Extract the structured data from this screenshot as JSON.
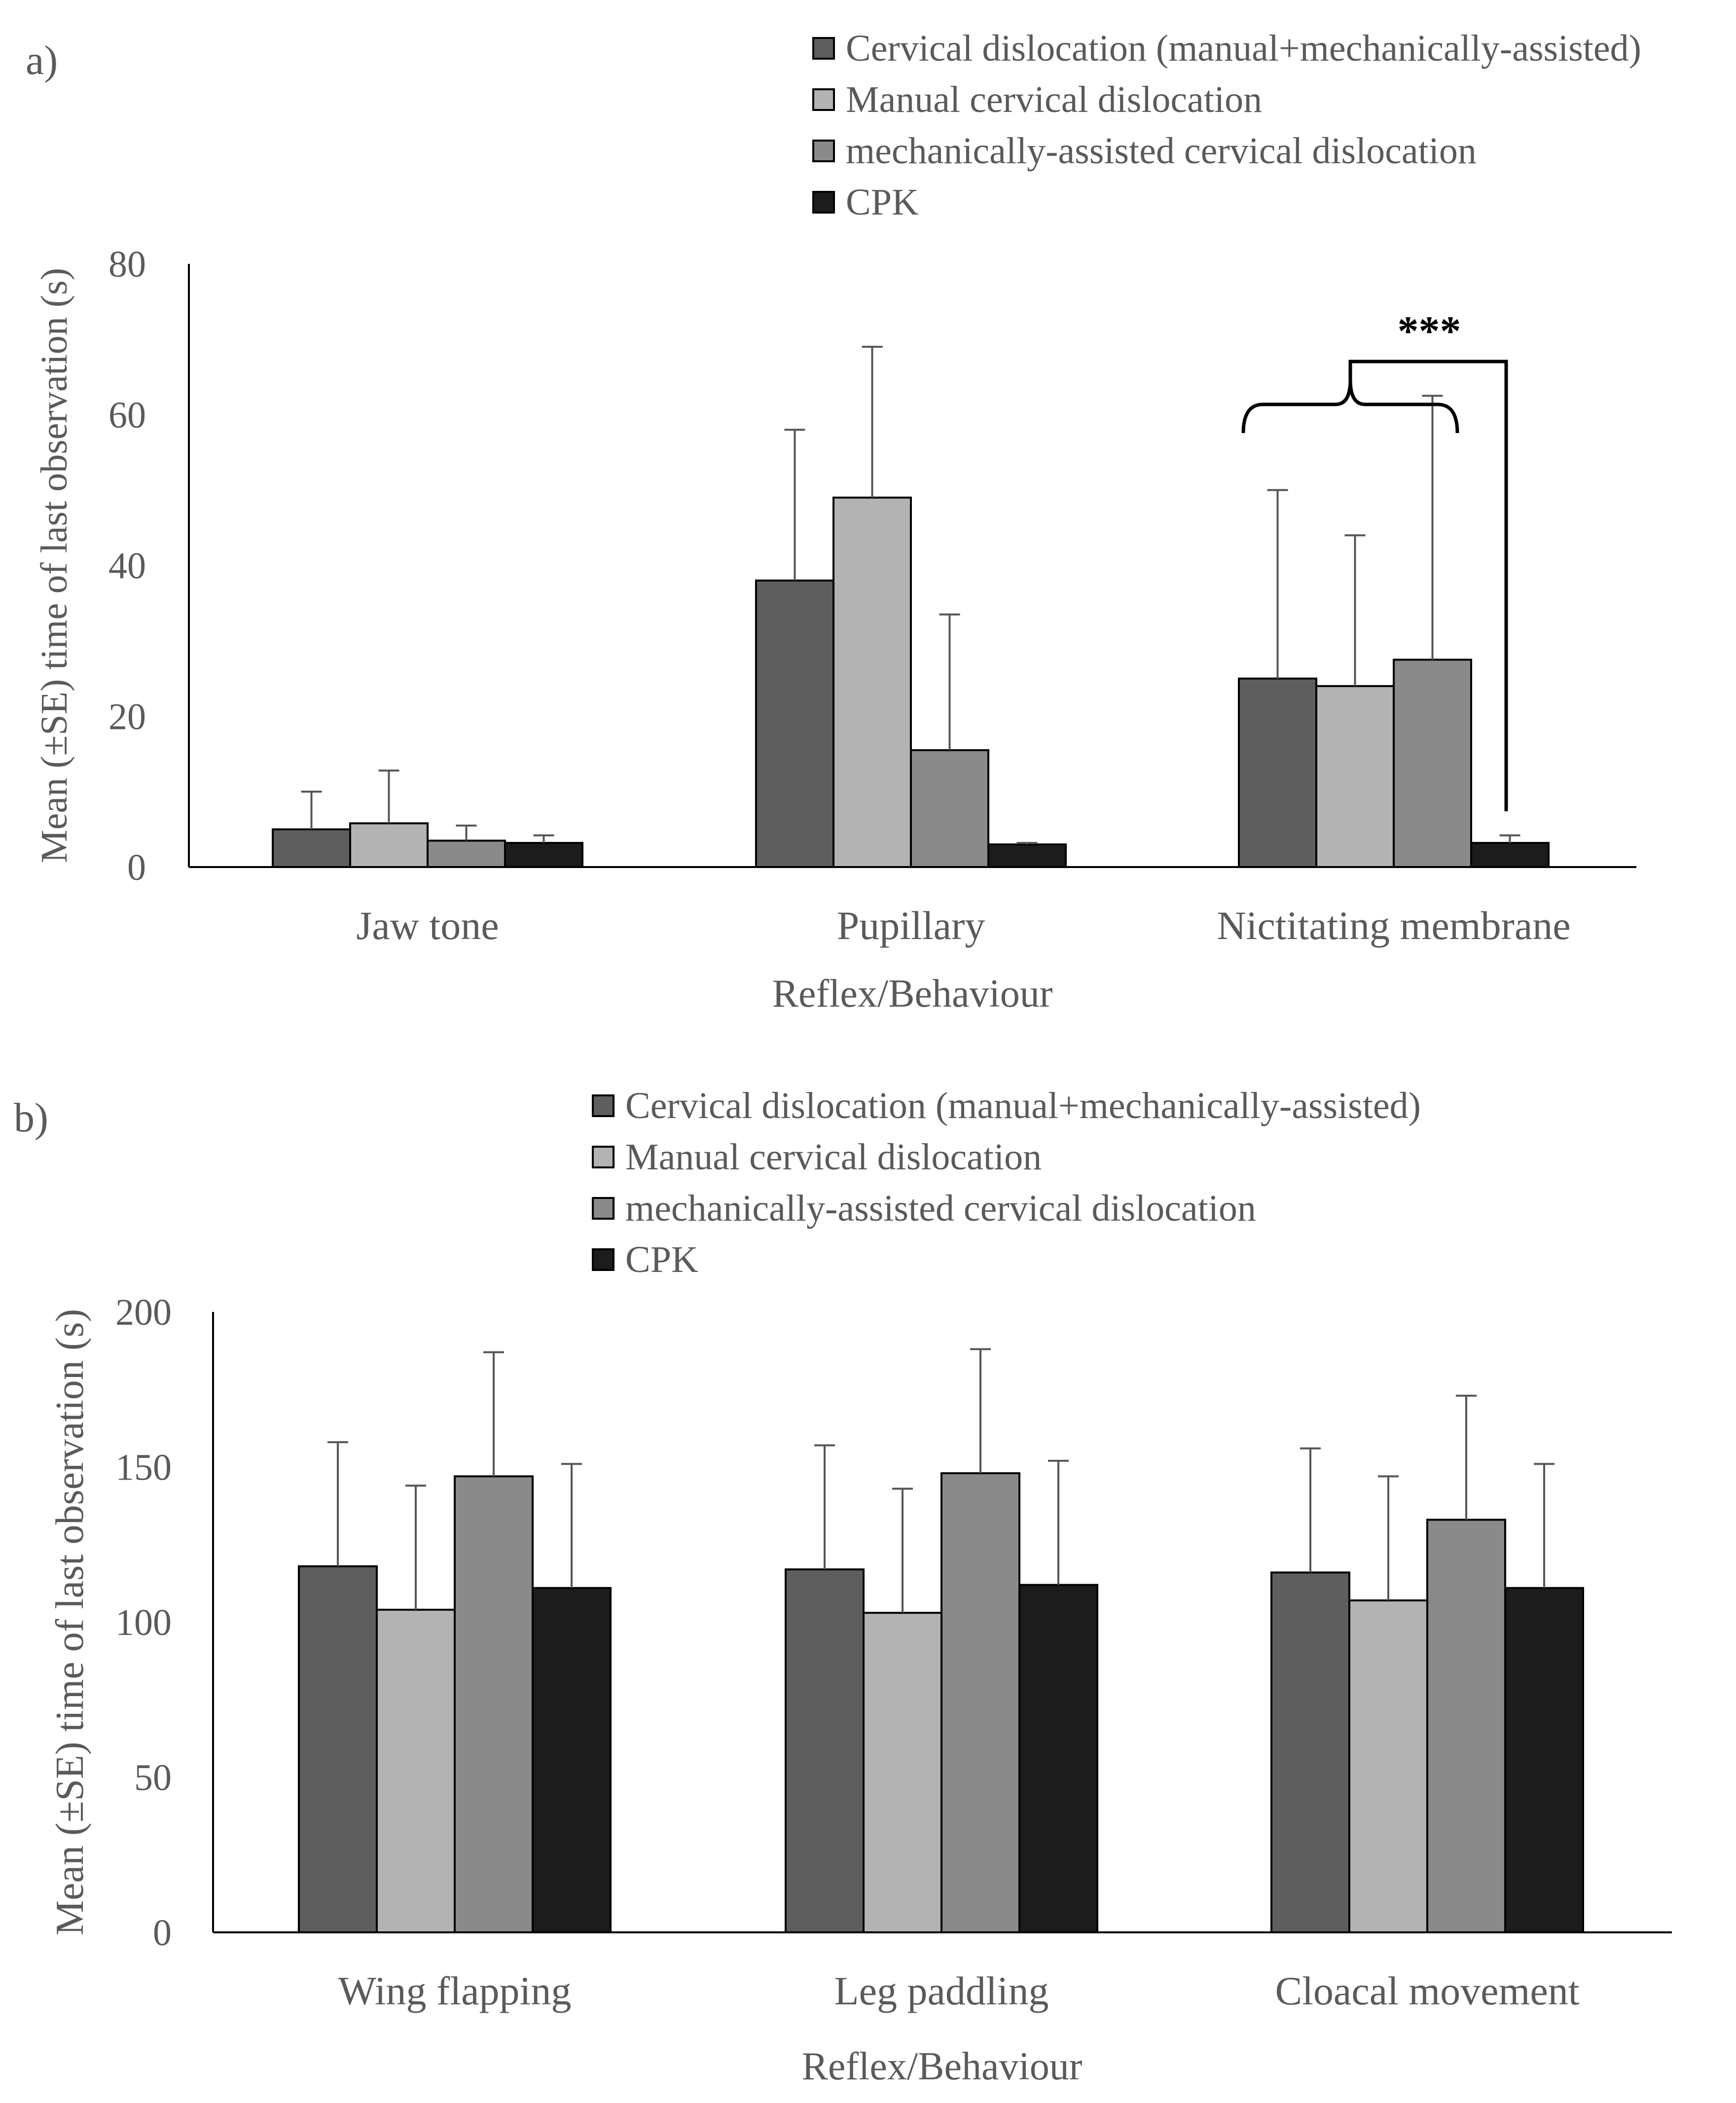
{
  "chart_data": [
    {
      "panel": "a)",
      "type": "bar",
      "title": "",
      "xlabel": "Reflex/Behaviour",
      "ylabel": "Mean (±SE) time of last observation (s)",
      "ylim": [
        0,
        80
      ],
      "yticks": [
        0,
        20,
        40,
        60,
        80
      ],
      "grid": false,
      "legend_position": "top-right",
      "categories": [
        "Jaw tone",
        "Pupillary",
        "Nictitating membrane"
      ],
      "series": [
        {
          "name": "Cervical dislocation (manual+mechanically-assisted)",
          "color": "#5e5e5e",
          "values": [
            5.0,
            38.0,
            25.0
          ],
          "errors": [
            5.0,
            20.0,
            25.0
          ]
        },
        {
          "name": "Manual cervical dislocation",
          "color": "#b3b3b3",
          "values": [
            5.8,
            49.0,
            24.0
          ],
          "errors": [
            7.0,
            20.0,
            20.0
          ]
        },
        {
          "name": "mechanically-assisted cervical dislocation",
          "color": "#8a8a8a",
          "values": [
            3.5,
            15.5,
            27.5
          ],
          "errors": [
            2.0,
            18.0,
            35.0
          ]
        },
        {
          "name": "CPK",
          "color": "#1c1c1c",
          "values": [
            3.2,
            3.0,
            3.2
          ],
          "errors": [
            1.0,
            0.2,
            1.0
          ]
        }
      ],
      "annotations": [
        {
          "text": "***",
          "comparison": "Nictitating membrane: cervical dislocation groups vs CPK"
        }
      ]
    },
    {
      "panel": "b)",
      "type": "bar",
      "title": "",
      "xlabel": "Reflex/Behaviour",
      "ylabel": "Mean (±SE) time of last observation (s)",
      "ylim": [
        0,
        200
      ],
      "yticks": [
        0,
        50,
        100,
        150,
        200
      ],
      "grid": false,
      "legend_position": "top-center",
      "categories": [
        "Wing flapping",
        "Leg paddling",
        "Cloacal movement"
      ],
      "series": [
        {
          "name": "Cervical dislocation (manual+mechanically-assisted)",
          "color": "#5e5e5e",
          "values": [
            118,
            117,
            116
          ],
          "errors": [
            40,
            40,
            40
          ]
        },
        {
          "name": "Manual cervical dislocation",
          "color": "#b3b3b3",
          "values": [
            104,
            103,
            107
          ],
          "errors": [
            40,
            40,
            40
          ]
        },
        {
          "name": "mechanically-assisted cervical dislocation",
          "color": "#8a8a8a",
          "values": [
            147,
            148,
            133
          ],
          "errors": [
            40,
            40,
            40
          ]
        },
        {
          "name": "CPK",
          "color": "#1c1c1c",
          "values": [
            111,
            112,
            111
          ],
          "errors": [
            40,
            40,
            40
          ]
        }
      ]
    }
  ]
}
